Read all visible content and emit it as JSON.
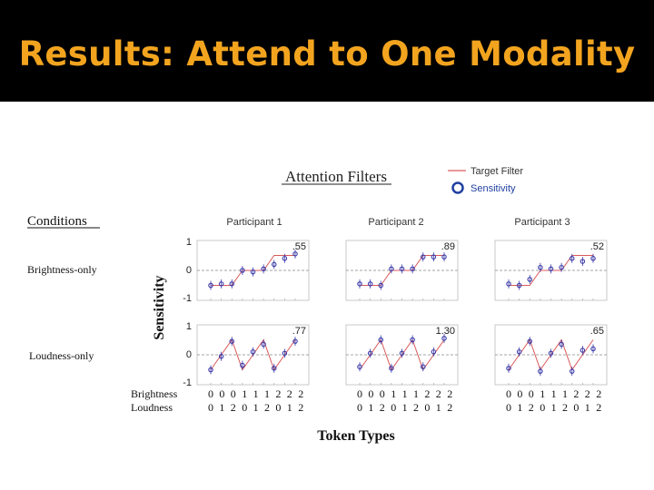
{
  "slide": {
    "title": "Results: Attend to One Modality"
  },
  "figure": {
    "heading": "Attention Filters",
    "conditions_header": "Conditions",
    "y_axis_label": "Sensitivity",
    "x_axis_label": "Token Types",
    "legend": {
      "line_label": "Target Filter",
      "marker_label": "Sensitivity"
    },
    "row_labels": [
      "Brightness-only",
      "Loudness-only"
    ],
    "column_labels": [
      "Participant 1",
      "Participant 2",
      "Participant 3"
    ],
    "token_rows": {
      "brightness_label": "Brightness",
      "loudness_label": "Loudness",
      "brightness": [
        "0",
        "0",
        "0",
        "1",
        "1",
        "1",
        "2",
        "2",
        "2"
      ],
      "loudness": [
        "0",
        "1",
        "2",
        "0",
        "1",
        "2",
        "0",
        "1",
        "2"
      ]
    },
    "colors": {
      "target_line": "#d95a5a",
      "marker": "#3a3aa8",
      "legend_marker": "#1f3fa0",
      "dashed_zero": "#888888"
    }
  },
  "chart_data": {
    "type": "line",
    "ylim": [
      -1,
      1
    ],
    "yticks": [
      "1",
      "0",
      "-1"
    ],
    "categories": [
      "00",
      "01",
      "02",
      "10",
      "11",
      "12",
      "20",
      "21",
      "22"
    ],
    "panels": [
      {
        "condition": "Brightness-only",
        "participant": "Participant 1",
        "annotation": ".55",
        "target": [
          -0.5,
          -0.5,
          -0.5,
          0,
          0,
          0,
          0.5,
          0.5,
          0.5
        ],
        "sensitivity": [
          -0.5,
          -0.45,
          -0.45,
          0,
          -0.05,
          0.05,
          0.2,
          0.4,
          0.55
        ]
      },
      {
        "condition": "Brightness-only",
        "participant": "Participant 2",
        "annotation": ".89",
        "target": [
          -0.5,
          -0.5,
          -0.5,
          0,
          0,
          0,
          0.5,
          0.5,
          0.5
        ],
        "sensitivity": [
          -0.45,
          -0.45,
          -0.5,
          0.05,
          0.05,
          0.05,
          0.45,
          0.45,
          0.45
        ]
      },
      {
        "condition": "Brightness-only",
        "participant": "Participant 3",
        "annotation": ".52",
        "target": [
          -0.5,
          -0.5,
          -0.5,
          0,
          0,
          0,
          0.5,
          0.5,
          0.5
        ],
        "sensitivity": [
          -0.45,
          -0.5,
          -0.3,
          0.1,
          0.05,
          0.1,
          0.4,
          0.3,
          0.4
        ]
      },
      {
        "condition": "Loudness-only",
        "participant": "Participant 1",
        "annotation": ".77",
        "target": [
          -0.5,
          0,
          0.5,
          -0.5,
          0,
          0.5,
          -0.5,
          0,
          0.5
        ],
        "sensitivity": [
          -0.5,
          -0.05,
          0.45,
          -0.35,
          0.1,
          0.35,
          -0.45,
          0.05,
          0.45
        ]
      },
      {
        "condition": "Loudness-only",
        "participant": "Participant 2",
        "annotation": "1.30",
        "target": [
          -0.5,
          0,
          0.5,
          -0.5,
          0,
          0.5,
          -0.5,
          0,
          0.5
        ],
        "sensitivity": [
          -0.4,
          0.05,
          0.5,
          -0.45,
          0.05,
          0.5,
          -0.4,
          0.1,
          0.55
        ]
      },
      {
        "condition": "Loudness-only",
        "participant": "Participant 3",
        "annotation": ".65",
        "target": [
          -0.5,
          0,
          0.5,
          -0.5,
          0,
          0.5,
          -0.5,
          0,
          0.5
        ],
        "sensitivity": [
          -0.45,
          0.1,
          0.45,
          -0.55,
          0.05,
          0.35,
          -0.55,
          0.15,
          0.2
        ]
      }
    ]
  }
}
